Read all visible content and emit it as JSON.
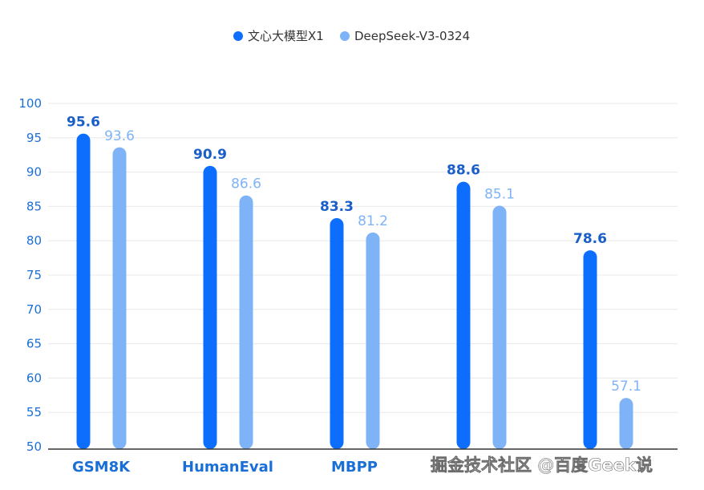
{
  "chart_data": {
    "type": "bar",
    "title": "",
    "xlabel": "",
    "ylabel": "",
    "categories": [
      "GSM8K",
      "HumanEval",
      "MBPP",
      "",
      ""
    ],
    "series": [
      {
        "name": "文心大模型X1",
        "color": "#0d6efd",
        "values": [
          95.6,
          90.9,
          83.3,
          88.6,
          78.6
        ]
      },
      {
        "name": "DeepSeek-V3-0324",
        "color": "#7eb3f7",
        "values": [
          93.6,
          86.6,
          81.2,
          85.1,
          57.1
        ]
      }
    ],
    "ylim": [
      50,
      100
    ],
    "yticks": [
      50,
      55,
      60,
      65,
      70,
      75,
      80,
      85,
      90,
      95,
      100
    ],
    "grid": true,
    "legend": "top-center",
    "colors": {
      "axis_text": "#1a6fd6",
      "grid": "#e8e8e8"
    }
  },
  "watermark": "掘金技术社区 @百度Geek说"
}
